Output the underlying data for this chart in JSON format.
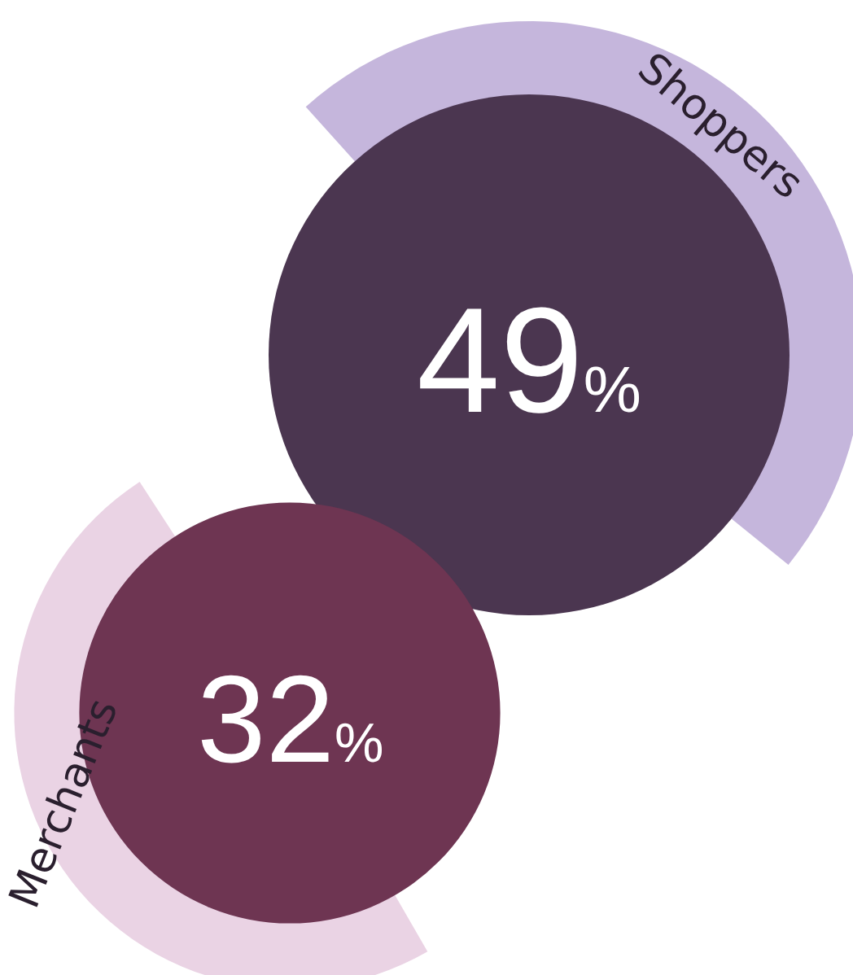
{
  "chart_data": {
    "type": "other",
    "categories": [
      "Shoppers",
      "Merchants"
    ],
    "values": [
      49,
      32
    ],
    "value_labels": [
      "49%",
      "32%"
    ]
  }
}
